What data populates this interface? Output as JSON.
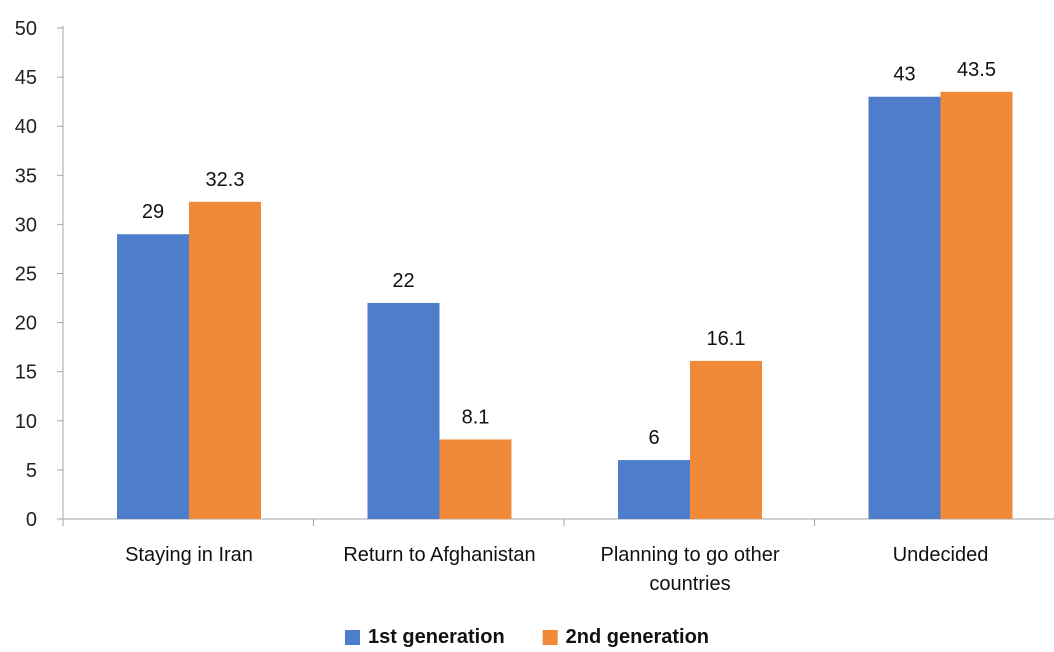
{
  "chart_data": {
    "type": "bar",
    "title": "",
    "xlabel": "",
    "ylabel": "",
    "ylim": [
      0,
      50
    ],
    "ytick_step": 5,
    "yticks": [
      "0",
      "5",
      "10",
      "15",
      "20",
      "25",
      "30",
      "35",
      "40",
      "45",
      "50"
    ],
    "grid": false,
    "legend_position": "bottom",
    "categories": [
      [
        "Staying in Iran"
      ],
      [
        "Return to Afghanistan"
      ],
      [
        "Planning to go other",
        "countries"
      ],
      [
        "Undecided"
      ]
    ],
    "series": [
      {
        "name": "1st generation",
        "color": "#4e7dcc",
        "values": [
          29,
          22,
          6,
          43
        ],
        "labels": [
          "29",
          "22",
          "6",
          "43"
        ]
      },
      {
        "name": "2nd generation",
        "color": "#f08a38",
        "values": [
          32.3,
          8.1,
          16.1,
          43.5
        ],
        "labels": [
          "32.3",
          "8.1",
          "16.1",
          "43.5"
        ]
      }
    ]
  }
}
